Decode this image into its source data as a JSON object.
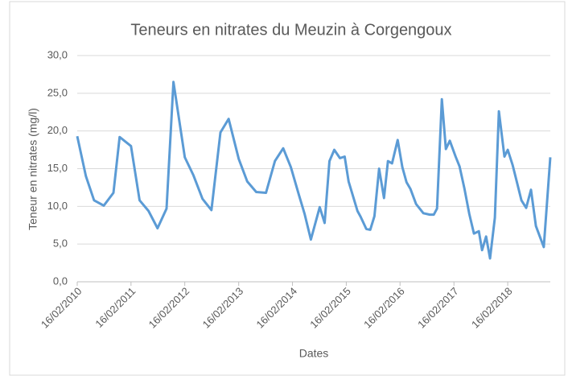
{
  "chart_data": {
    "type": "line",
    "title": "Teneurs en nitrates du Meuzin à Corgengoux",
    "x_label": "Dates",
    "y_label": "Teneur en nitrates (mg/l)",
    "x": [
      "16/02/2010",
      "16/04/2010",
      "10/06/2010",
      "15/08/2010",
      "20/10/2010",
      "01/12/2010",
      "16/02/2011",
      "15/04/2011",
      "15/06/2011",
      "15/08/2011",
      "15/10/2011",
      "01/12/2011",
      "16/02/2012",
      "15/04/2012",
      "15/06/2012",
      "15/08/2012",
      "15/10/2012",
      "10/12/2012",
      "16/02/2013",
      "15/04/2013",
      "15/06/2013",
      "20/08/2013",
      "20/10/2013",
      "15/12/2013",
      "05/02/2014",
      "01/04/2014",
      "09/05/2014",
      "21/06/2014",
      "20/08/2014",
      "22/09/2014",
      "25/10/2014",
      "27/11/2014",
      "04/01/2015",
      "05/02/2015",
      "04/03/2015",
      "03/05/2015",
      "25/05/2015",
      "02/07/2015",
      "29/07/2015",
      "26/08/2015",
      "27/09/2015",
      "30/10/2015",
      "26/11/2015",
      "24/12/2015",
      "31/01/2016",
      "03/03/2016",
      "31/03/2016",
      "27/04/2016",
      "04/06/2016",
      "23/07/2016",
      "05/09/2016",
      "02/10/2016",
      "24/10/2016",
      "26/11/2016",
      "23/12/2016",
      "19/01/2017",
      "27/02/2017",
      "26/03/2017",
      "28/04/2017",
      "31/05/2017",
      "02/07/2017",
      "04/08/2017",
      "26/08/2017",
      "22/09/2017",
      "19/10/2017",
      "21/11/2017",
      "18/12/2017",
      "25/01/2018",
      "16/02/2018",
      "21/03/2018",
      "22/04/2018",
      "20/05/2018",
      "21/06/2018",
      "24/07/2018",
      "26/08/2018",
      "22/09/2018",
      "19/10/2018",
      "02/12/2018"
    ],
    "series": [
      {
        "name": "Teneur en nitrates",
        "color": "#5b9bd5",
        "values": [
          19.3,
          14,
          10.8,
          10.1,
          11.8,
          19.2,
          18,
          10.8,
          9.4,
          7.1,
          9.7,
          26.5,
          16.5,
          14.1,
          11,
          9.5,
          19.8,
          21.6,
          16.3,
          13.3,
          11.9,
          11.8,
          16,
          17.7,
          15.2,
          11.5,
          9,
          5.6,
          9.9,
          7.8,
          16,
          17.5,
          16.4,
          16.6,
          13.3,
          9.4,
          8.6,
          7,
          6.9,
          8.7,
          15,
          11.1,
          16,
          15.7,
          18.8,
          15.2,
          13.2,
          12.3,
          10.3,
          9.1,
          8.9,
          8.9,
          9.7,
          24.2,
          17.6,
          18.7,
          16.6,
          15.3,
          12.4,
          9,
          6.4,
          6.7,
          4.2,
          6,
          3.1,
          8.5,
          22.6,
          16.6,
          17.5,
          15.5,
          13,
          10.8,
          9.8,
          12.2,
          7.4,
          6,
          4.6,
          16.5
        ]
      }
    ],
    "xlim": [
      "16/02/2010",
      "02/12/2018"
    ],
    "xticks": [
      "16/02/2010",
      "16/02/2011",
      "16/02/2012",
      "16/02/2013",
      "16/02/2014",
      "16/02/2015",
      "16/02/2016",
      "16/02/2017",
      "16/02/2018"
    ],
    "ylim": [
      0,
      30
    ],
    "yticks": [
      {
        "value": 0,
        "label": "0,0"
      },
      {
        "value": 5,
        "label": "5,0"
      },
      {
        "value": 10,
        "label": "10,0"
      },
      {
        "value": 15,
        "label": "15,0"
      },
      {
        "value": 20,
        "label": "20,0"
      },
      {
        "value": 25,
        "label": "25,0"
      },
      {
        "value": 30,
        "label": "30,0"
      }
    ],
    "grid": true
  }
}
